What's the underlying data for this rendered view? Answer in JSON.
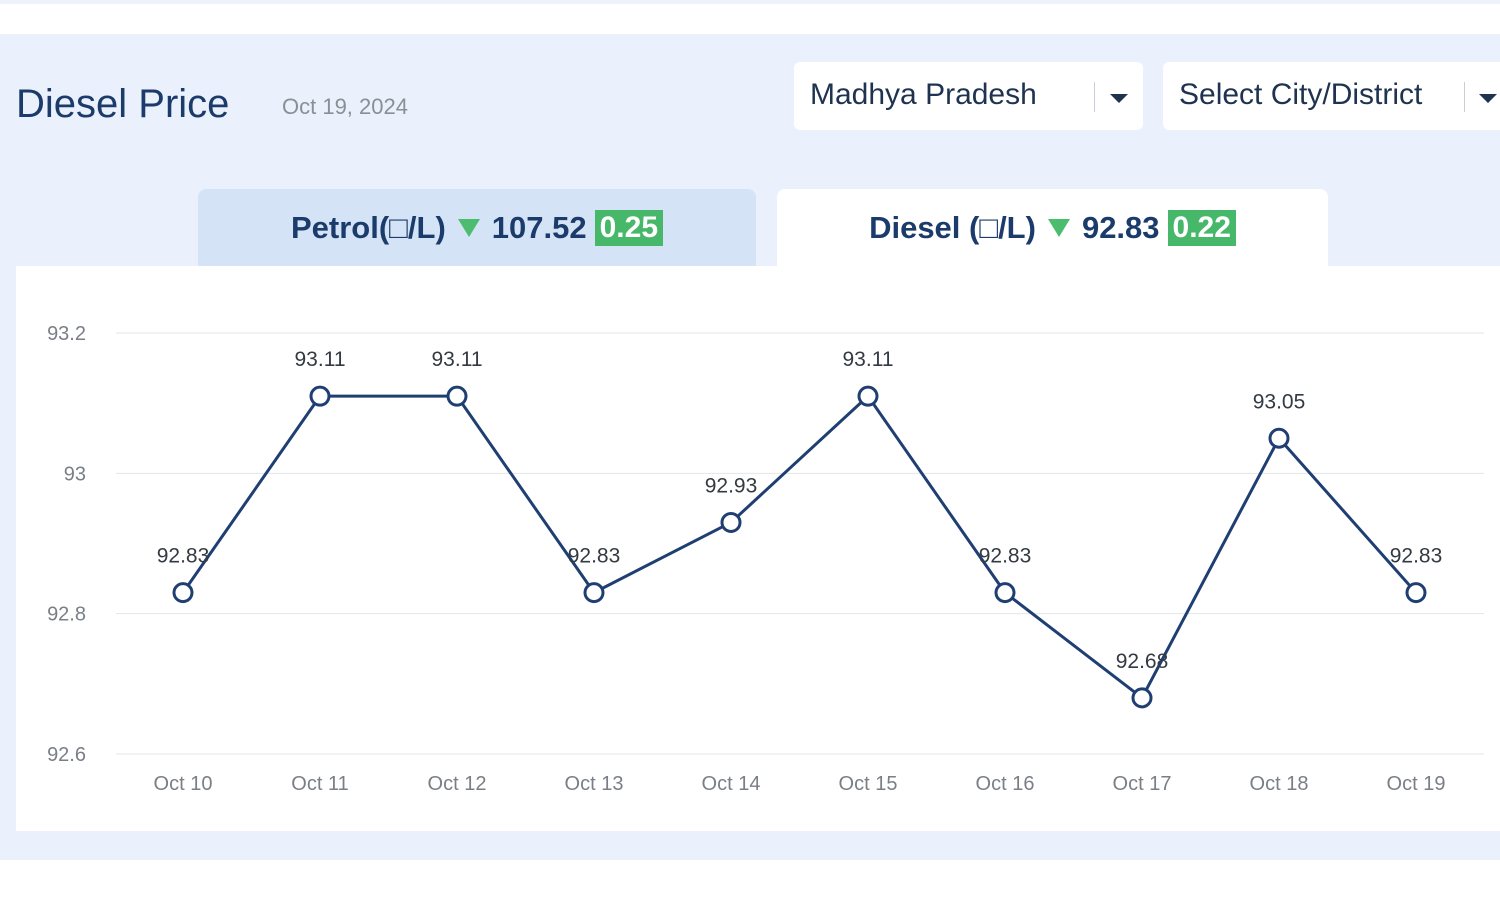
{
  "header": {
    "title": "Diesel Price",
    "date": "Oct 19, 2024"
  },
  "filters": {
    "state": "Madhya Pradesh",
    "city": "Select City/District"
  },
  "tabs": [
    {
      "label": "Petrol(□/L)",
      "price": "107.52",
      "change": "0.25",
      "trend": "down"
    },
    {
      "label": "Diesel (□/L)",
      "price": "92.83",
      "change": "0.22",
      "trend": "down"
    }
  ],
  "colors": {
    "line": "#1f3f73",
    "accent_green": "#47b86a",
    "title": "#1b3b6b"
  },
  "chart_data": {
    "type": "line",
    "categories": [
      "Oct 10",
      "Oct 11",
      "Oct 12",
      "Oct 13",
      "Oct 14",
      "Oct 15",
      "Oct 16",
      "Oct 17",
      "Oct 18",
      "Oct 19"
    ],
    "values": [
      92.83,
      93.11,
      93.11,
      92.83,
      92.93,
      93.11,
      92.83,
      92.68,
      93.05,
      92.83
    ],
    "data_labels": [
      "92.83",
      "93.11",
      "93.11",
      "92.83",
      "92.93",
      "93.11",
      "92.83",
      "92.68",
      "93.05",
      "92.83"
    ],
    "y_ticks": [
      "92.6",
      "92.8",
      "93",
      "93.2"
    ],
    "ylim": [
      92.6,
      93.2
    ],
    "grid": true,
    "legend": "none"
  }
}
